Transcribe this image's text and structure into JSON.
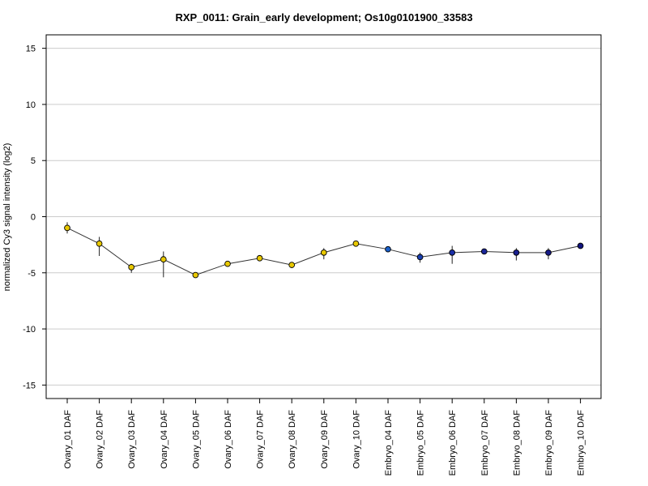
{
  "chart_data": {
    "type": "line",
    "title": "RXP_0011: Grain_early development; Os10g0101900_33583",
    "xlabel": "",
    "ylabel": "normalized Cy3 signal intensity (log2)",
    "ylim": [
      -16.2,
      16.2
    ],
    "yticks": [
      -15,
      -10,
      -5,
      0,
      5,
      10,
      15
    ],
    "ytick_labels": [
      "-15",
      "-10",
      "-5",
      "0",
      "5",
      "10",
      "15"
    ],
    "grid": "horizontal",
    "categories": [
      "Ovary_01 DAF",
      "Ovary_02 DAF",
      "Ovary_03 DAF",
      "Ovary_04 DAF",
      "Ovary_05 DAF",
      "Ovary_06 DAF",
      "Ovary_07 DAF",
      "Ovary_08 DAF",
      "Ovary_09 DAF",
      "Ovary_10 DAF",
      "Embryo_04 DAF",
      "Embryo_05 DAF",
      "Embryo_06 DAF",
      "Embryo_07 DAF",
      "Embryo_08 DAF",
      "Embryo_09 DAF",
      "Embryo_10 DAF"
    ],
    "values": [
      -1.0,
      -2.4,
      -4.5,
      -3.8,
      -5.2,
      -4.2,
      -3.7,
      -4.3,
      -3.2,
      -2.4,
      -2.9,
      -3.6,
      -3.2,
      -3.1,
      -3.2,
      -3.2,
      -2.6
    ],
    "error_low": [
      -1.5,
      -3.5,
      -5.0,
      -5.4,
      -5.3,
      -4.4,
      -3.8,
      -4.5,
      -3.8,
      -2.6,
      -3.0,
      -4.1,
      -4.2,
      -3.2,
      -3.9,
      -3.8,
      -2.7
    ],
    "error_high": [
      -0.5,
      -1.8,
      -4.2,
      -3.1,
      -5.1,
      -4.0,
      -3.5,
      -4.1,
      -2.8,
      -2.2,
      -2.8,
      -3.2,
      -2.6,
      -2.9,
      -2.8,
      -2.8,
      -2.5
    ],
    "point_colors": [
      "#e8c800",
      "#e8c800",
      "#e8c800",
      "#e8c800",
      "#e8c800",
      "#e8c800",
      "#e8c800",
      "#e8c800",
      "#e8c800",
      "#e8c800",
      "#1a5fc8",
      "#1a3fb0",
      "#1a2fa8",
      "#1a2599",
      "#1a2090",
      "#161a88",
      "#121580"
    ],
    "line_color": "#333333"
  }
}
